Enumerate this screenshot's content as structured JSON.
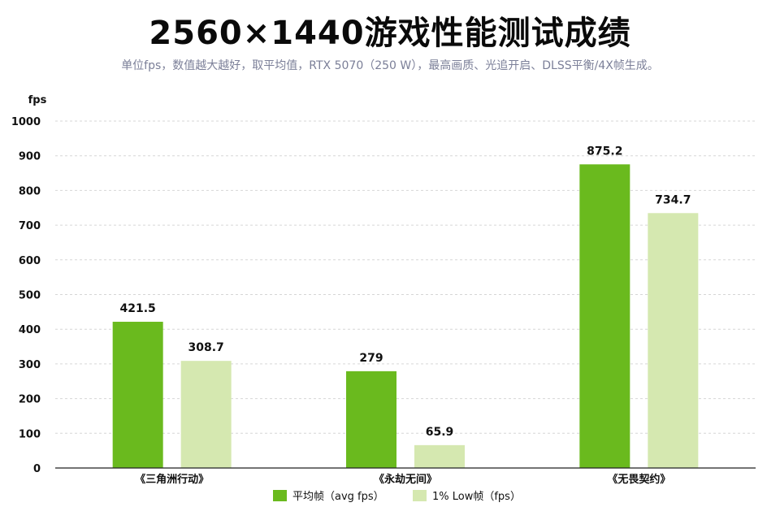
{
  "header": {
    "title": "2560×1440游戏性能测试成绩",
    "subtitle": "单位fps，数值越大越好，取平均值，RTX 5070（250 W），最高画质、光追开启、DLSS平衡/4X帧生成。"
  },
  "chart_data": {
    "type": "bar",
    "title": "2560×1440游戏性能测试成绩",
    "subtitle": "单位fps，数值越大越好，取平均值，RTX 5070（250 W），最高画质、光追开启、DLSS平衡/4X帧生成。",
    "ylabel": "fps",
    "xlabel": "",
    "ylim": [
      0,
      1000
    ],
    "yticks": [
      0,
      100,
      200,
      300,
      400,
      500,
      600,
      700,
      800,
      900,
      1000
    ],
    "grid": true,
    "legend_position": "bottom",
    "categories": [
      "《三角洲行动》",
      "《永劫无间》",
      "《无畏契约》"
    ],
    "series": [
      {
        "name": "平均帧（avg fps）",
        "color": "#6aba1e",
        "values": [
          421.5,
          279,
          875.2
        ],
        "labels": [
          "421.5",
          "279",
          "875.2"
        ]
      },
      {
        "name": "1% Low帧（fps）",
        "color": "#d5e8b0",
        "values": [
          308.7,
          65.9,
          734.7
        ],
        "labels": [
          "308.7",
          "65.9",
          "734.7"
        ]
      }
    ]
  }
}
